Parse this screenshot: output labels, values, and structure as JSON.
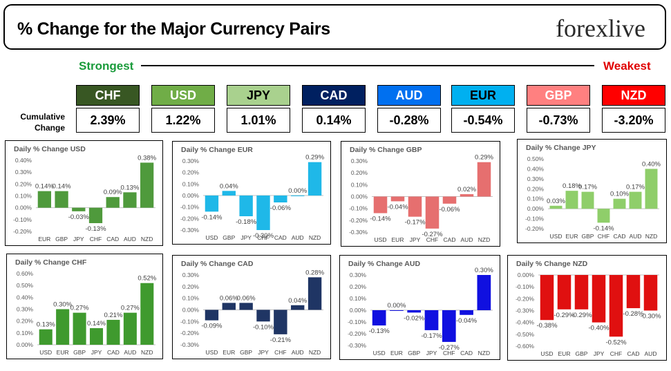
{
  "header": {
    "title": "% Change for the Major Currency Pairs",
    "logo": "forexlive"
  },
  "legend": {
    "strongest": "Strongest",
    "weakest": "Weakest",
    "cumulative_label": "Cumulative Change"
  },
  "strength_tiles": [
    {
      "code": "CHF",
      "value": "2.39%",
      "color": "#385723",
      "text_color": "#ffffff"
    },
    {
      "code": "USD",
      "value": "1.22%",
      "color": "#70ad47",
      "text_color": "#ffffff"
    },
    {
      "code": "JPY",
      "value": "1.01%",
      "color": "#a9d18e",
      "text_color": "#000000"
    },
    {
      "code": "CAD",
      "value": "0.14%",
      "color": "#002060",
      "text_color": "#ffffff"
    },
    {
      "code": "AUD",
      "value": "-0.28%",
      "color": "#0070f0",
      "text_color": "#ffffff"
    },
    {
      "code": "EUR",
      "value": "-0.54%",
      "color": "#00b0f0",
      "text_color": "#000000"
    },
    {
      "code": "GBP",
      "value": "-0.73%",
      "color": "#ff8080",
      "text_color": "#ffffff"
    },
    {
      "code": "NZD",
      "value": "-3.20%",
      "color": "#ff0000",
      "text_color": "#ffffff"
    }
  ],
  "chart_data": [
    {
      "type": "bar",
      "title": "Daily % Change USD",
      "categories": [
        "EUR",
        "GBP",
        "JPY",
        "CHF",
        "CAD",
        "AUD",
        "NZD"
      ],
      "values": [
        0.14,
        0.14,
        -0.03,
        -0.13,
        0.09,
        0.13,
        0.38
      ],
      "labels": [
        "0.14%",
        "0.14%",
        "-0.03%",
        "-0.13%",
        "0.09%",
        "0.13%",
        "0.38%"
      ],
      "ylim": [
        -0.2,
        0.4
      ],
      "ticks": [
        0.4,
        0.3,
        0.2,
        0.1,
        0,
        -0.1,
        -0.2
      ],
      "tick_labels": [
        "0.40%",
        "0.30%",
        "0.20%",
        "0.10%",
        "0.00%",
        "-0.10%",
        "-0.20%"
      ],
      "color": "#4f9a3c"
    },
    {
      "type": "bar",
      "title": "Daily % Change EUR",
      "categories": [
        "USD",
        "GBP",
        "JPY",
        "CHF",
        "CAD",
        "AUD",
        "NZD"
      ],
      "values": [
        -0.14,
        0.04,
        -0.18,
        -0.3,
        -0.06,
        0.0,
        0.29
      ],
      "labels": [
        "-0.14%",
        "0.04%",
        "-0.18%",
        "-0.30%",
        "-0.06%",
        "0.00%",
        "0.29%"
      ],
      "ylim": [
        -0.3,
        0.3
      ],
      "ticks": [
        0.3,
        0.2,
        0.1,
        0,
        -0.1,
        -0.2,
        -0.3
      ],
      "tick_labels": [
        "0.30%",
        "0.20%",
        "0.10%",
        "0.00%",
        "-0.10%",
        "-0.20%",
        "-0.30%"
      ],
      "color": "#1fb8e8"
    },
    {
      "type": "bar",
      "title": "Daily % Change GBP",
      "categories": [
        "USD",
        "EUR",
        "JPY",
        "CHF",
        "CAD",
        "AUD",
        "NZD"
      ],
      "values": [
        -0.14,
        -0.04,
        -0.17,
        -0.27,
        -0.06,
        0.02,
        0.29
      ],
      "labels": [
        "-0.14%",
        "-0.04%",
        "-0.17%",
        "-0.27%",
        "-0.06%",
        "0.02%",
        "0.29%"
      ],
      "ylim": [
        -0.3,
        0.3
      ],
      "ticks": [
        0.3,
        0.2,
        0.1,
        0,
        -0.1,
        -0.2,
        -0.3
      ],
      "tick_labels": [
        "0.30%",
        "0.20%",
        "0.10%",
        "0.00%",
        "-0.10%",
        "-0.20%",
        "-0.30%"
      ],
      "color": "#e66f6f"
    },
    {
      "type": "bar",
      "title": "Daily % Change JPY",
      "categories": [
        "USD",
        "EUR",
        "GBP",
        "CHF",
        "CAD",
        "AUD",
        "NZD"
      ],
      "values": [
        0.03,
        0.18,
        0.17,
        -0.14,
        0.1,
        0.17,
        0.4
      ],
      "labels": [
        "0.03%",
        "0.18%",
        "0.17%",
        "-0.14%",
        "0.10%",
        "0.17%",
        "0.40%"
      ],
      "ylim": [
        -0.2,
        0.5
      ],
      "ticks": [
        0.5,
        0.4,
        0.3,
        0.2,
        0.1,
        0,
        -0.1,
        -0.2
      ],
      "tick_labels": [
        "0.50%",
        "0.40%",
        "0.30%",
        "0.20%",
        "0.10%",
        "0.00%",
        "-0.10%",
        "-0.20%"
      ],
      "color": "#8fce6a"
    },
    {
      "type": "bar",
      "title": "Daily % Change CHF",
      "categories": [
        "USD",
        "EUR",
        "GBP",
        "JPY",
        "CAD",
        "AUD",
        "NZD"
      ],
      "values": [
        0.13,
        0.3,
        0.27,
        0.14,
        0.21,
        0.27,
        0.52
      ],
      "labels": [
        "0.13%",
        "0.30%",
        "0.27%",
        "0.14%",
        "0.21%",
        "0.27%",
        "0.52%"
      ],
      "ylim": [
        0,
        0.6
      ],
      "ticks": [
        0.6,
        0.5,
        0.4,
        0.3,
        0.2,
        0.1,
        0
      ],
      "tick_labels": [
        "0.60%",
        "0.50%",
        "0.40%",
        "0.30%",
        "0.20%",
        "0.10%",
        "0.00%"
      ],
      "color": "#3f9a2e"
    },
    {
      "type": "bar",
      "title": "Daily % Change CAD",
      "categories": [
        "USD",
        "EUR",
        "GBP",
        "JPY",
        "CHF",
        "AUD",
        "NZD"
      ],
      "values": [
        -0.09,
        0.06,
        0.06,
        -0.1,
        -0.21,
        0.04,
        0.28
      ],
      "labels": [
        "-0.09%",
        "0.06%",
        "0.06%",
        "-0.10%",
        "-0.21%",
        "0.04%",
        "0.28%"
      ],
      "ylim": [
        -0.3,
        0.3
      ],
      "ticks": [
        0.3,
        0.2,
        0.1,
        0,
        -0.1,
        -0.2,
        -0.3
      ],
      "tick_labels": [
        "0.30%",
        "0.20%",
        "0.10%",
        "0.00%",
        "-0.10%",
        "-0.20%",
        "-0.30%"
      ],
      "color": "#1f3564"
    },
    {
      "type": "bar",
      "title": "Daily % Change AUD",
      "categories": [
        "USD",
        "EUR",
        "GBP",
        "JPY",
        "CHF",
        "CAD",
        "NZD"
      ],
      "values": [
        -0.13,
        0.0,
        -0.02,
        -0.17,
        -0.27,
        -0.04,
        0.3
      ],
      "labels": [
        "-0.13%",
        "0.00%",
        "-0.02%",
        "-0.17%",
        "-0.27%",
        "-0.04%",
        "0.30%"
      ],
      "ylim": [
        -0.3,
        0.3
      ],
      "ticks": [
        0.3,
        0.2,
        0.1,
        0,
        -0.1,
        -0.2,
        -0.3
      ],
      "tick_labels": [
        "0.30%",
        "0.20%",
        "0.10%",
        "0.00%",
        "-0.10%",
        "-0.20%",
        "-0.30%"
      ],
      "color": "#1010e0"
    },
    {
      "type": "bar",
      "title": "Daily % Change NZD",
      "categories": [
        "USD",
        "EUR",
        "GBP",
        "JPY",
        "CHF",
        "CAD",
        "AUD"
      ],
      "values": [
        -0.38,
        -0.29,
        -0.29,
        -0.4,
        -0.52,
        -0.28,
        -0.3
      ],
      "labels": [
        "-0.38%",
        "-0.29%",
        "-0.29%",
        "-0.40%",
        "-0.52%",
        "-0.28%",
        "-0.30%"
      ],
      "ylim": [
        -0.6,
        0.0
      ],
      "ticks": [
        0,
        -0.1,
        -0.2,
        -0.3,
        -0.4,
        -0.5,
        -0.6
      ],
      "tick_labels": [
        "0.00%",
        "-0.10%",
        "-0.20%",
        "-0.30%",
        "-0.40%",
        "-0.50%",
        "-0.60%"
      ],
      "color": "#e01010"
    }
  ]
}
